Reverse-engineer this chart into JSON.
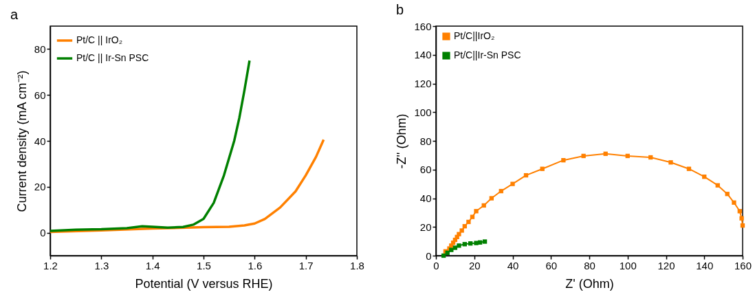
{
  "chart_data": [
    {
      "type": "line",
      "annotations": [
        "a"
      ],
      "xlabel": "Potential (V versus RHE)",
      "ylabel": "Current density (mA cm⁻²)",
      "xlim": [
        1.2,
        1.8
      ],
      "ylim": [
        -10,
        90
      ],
      "xticks": [
        1.2,
        1.3,
        1.4,
        1.5,
        1.6,
        1.7,
        1.8
      ],
      "yticks": [
        0,
        20,
        40,
        60,
        80
      ],
      "legend": "top left",
      "marker": "none",
      "series": [
        {
          "name": "Pt/C || IrO₂",
          "color": "#ff8000",
          "x": [
            1.2,
            1.3,
            1.4,
            1.5,
            1.55,
            1.58,
            1.6,
            1.62,
            1.65,
            1.68,
            1.7,
            1.72,
            1.735
          ],
          "values": [
            0.3,
            1,
            1.8,
            2.4,
            2.6,
            3.2,
            4,
            6,
            11,
            18,
            25,
            33,
            40.5
          ]
        },
        {
          "name": "Pt/C || Ir-Sn PSC",
          "color": "#008000",
          "x": [
            1.2,
            1.25,
            1.3,
            1.35,
            1.38,
            1.4,
            1.43,
            1.46,
            1.48,
            1.5,
            1.52,
            1.54,
            1.56,
            1.57,
            1.58,
            1.59
          ],
          "values": [
            0.8,
            1.3,
            1.5,
            2,
            2.8,
            2.6,
            2.2,
            2.5,
            3.5,
            6,
            13,
            25,
            40,
            50,
            62,
            75
          ]
        }
      ]
    },
    {
      "type": "line",
      "annotations": [
        "b"
      ],
      "xlabel": "Z' (Ohm)",
      "ylabel": "-Z'' (Ohm)",
      "xlim": [
        0,
        160
      ],
      "ylim": [
        0,
        160
      ],
      "xticks": [
        0,
        20,
        40,
        60,
        80,
        100,
        120,
        140,
        160
      ],
      "yticks": [
        0,
        20,
        40,
        60,
        80,
        100,
        120,
        140,
        160
      ],
      "legend": "top left",
      "marker": "square",
      "series": [
        {
          "name": "Pt/C||IrO₂",
          "color": "#ff8000",
          "x": [
            5,
            7,
            8,
            9,
            10,
            11,
            12,
            13.5,
            15,
            17,
            19,
            21,
            25,
            29,
            34,
            40,
            47,
            55.5,
            66.5,
            77,
            88.5,
            100,
            112,
            122.5,
            132,
            140,
            147,
            152,
            155.5,
            158.5,
            159.5,
            160
          ],
          "values": [
            3,
            5,
            7,
            9,
            11,
            13,
            15,
            17.5,
            20.5,
            23.5,
            27,
            31,
            35,
            40,
            45,
            50,
            56,
            60.5,
            66.5,
            69.5,
            71,
            69.5,
            68.5,
            65,
            60.5,
            55,
            49,
            43,
            37,
            31,
            26,
            21
          ]
        },
        {
          "name": "Pt/C||Ir-Sn PSC",
          "color": "#008000",
          "x": [
            4,
            6,
            8,
            10,
            12,
            15,
            18,
            21,
            23,
            25.5
          ],
          "values": [
            0,
            2,
            4,
            5.5,
            7,
            8,
            8.5,
            8.8,
            9.2,
            9.8
          ]
        }
      ]
    }
  ]
}
